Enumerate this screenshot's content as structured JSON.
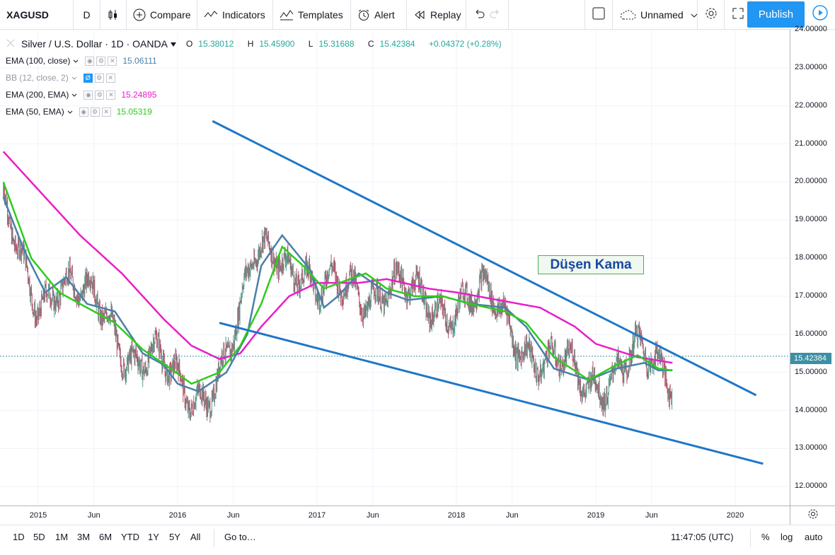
{
  "toolbar": {
    "symbol": "XAGUSD",
    "interval": "D",
    "compare": "Compare",
    "indicators": "Indicators",
    "templates": "Templates",
    "alert": "Alert",
    "replay": "Replay",
    "layout_name": "Unnamed",
    "publish": "Publish"
  },
  "legend": {
    "title": "Silver / U.S. Dollar · 1D · OANDA",
    "ohlc": {
      "o_label": "O",
      "o": "15.38012",
      "h_label": "H",
      "h": "15.45900",
      "l_label": "L",
      "l": "15.31688",
      "c_label": "C",
      "c": "15.42384",
      "change": "+0.04372 (+0.28%)"
    },
    "indicators": [
      {
        "name": "EMA (100, close)",
        "value": "15.06111",
        "color": "#4a7fa8"
      },
      {
        "name": "BB (12, close, 2)",
        "value": "",
        "color": "#9598a1"
      },
      {
        "name": "EMA (200, EMA)",
        "value": "15.24895",
        "color": "#e91ec8"
      },
      {
        "name": "EMA (50, EMA)",
        "value": "15.05319",
        "color": "#2ecc1a"
      }
    ]
  },
  "price_scale": {
    "ticks": [
      "24.00000",
      "23.00000",
      "22.00000",
      "21.00000",
      "20.00000",
      "19.00000",
      "18.00000",
      "17.00000",
      "16.00000",
      "15.00000",
      "14.00000",
      "13.00000",
      "12.00000"
    ],
    "last_price": "15.42384"
  },
  "time_scale": {
    "ticks": [
      "2015",
      "Jun",
      "2016",
      "Jun",
      "2017",
      "Jun",
      "2018",
      "Jun",
      "2019",
      "Jun",
      "2020"
    ]
  },
  "annotation": "Düşen Kama",
  "bottom": {
    "ranges": [
      "1D",
      "5D",
      "1M",
      "3M",
      "6M",
      "YTD",
      "1Y",
      "5Y",
      "All"
    ],
    "goto": "Go to…",
    "time": "11:47:05 (UTC)",
    "percent": "%",
    "log": "log",
    "auto": "auto"
  },
  "chart_data": {
    "type": "line",
    "title": "Silver / U.S. Dollar · 1D · OANDA",
    "ylim": [
      11.8,
      24.0
    ],
    "x_range": [
      "2014-10",
      "2020-05"
    ],
    "series": [
      {
        "name": "EMA (200, EMA)",
        "color": "#e91ec8",
        "points": [
          [
            2014.75,
            20.8
          ],
          [
            2015.0,
            19.8
          ],
          [
            2015.3,
            18.6
          ],
          [
            2015.6,
            17.6
          ],
          [
            2015.9,
            16.4
          ],
          [
            2016.1,
            15.7
          ],
          [
            2016.3,
            15.35
          ],
          [
            2016.45,
            15.5
          ],
          [
            2016.6,
            16.2
          ],
          [
            2016.8,
            17.0
          ],
          [
            2017.0,
            17.35
          ],
          [
            2017.3,
            17.35
          ],
          [
            2017.5,
            17.45
          ],
          [
            2017.8,
            17.2
          ],
          [
            2018.0,
            17.1
          ],
          [
            2018.3,
            16.9
          ],
          [
            2018.6,
            16.7
          ],
          [
            2018.85,
            16.2
          ],
          [
            2019.0,
            15.75
          ],
          [
            2019.3,
            15.4
          ],
          [
            2019.55,
            15.25
          ]
        ]
      },
      {
        "name": "EMA (100, close)",
        "color": "#4a7fa8",
        "points": [
          [
            2014.75,
            19.6
          ],
          [
            2014.9,
            18.2
          ],
          [
            2015.05,
            17.1
          ],
          [
            2015.2,
            17.5
          ],
          [
            2015.35,
            16.8
          ],
          [
            2015.55,
            16.6
          ],
          [
            2015.75,
            15.5
          ],
          [
            2015.9,
            15.2
          ],
          [
            2016.0,
            14.7
          ],
          [
            2016.15,
            14.5
          ],
          [
            2016.35,
            15.0
          ],
          [
            2016.5,
            16.0
          ],
          [
            2016.6,
            17.8
          ],
          [
            2016.75,
            18.6
          ],
          [
            2016.95,
            17.7
          ],
          [
            2017.05,
            16.7
          ],
          [
            2017.15,
            17.0
          ],
          [
            2017.3,
            17.6
          ],
          [
            2017.5,
            17.1
          ],
          [
            2017.65,
            16.9
          ],
          [
            2017.9,
            17.0
          ],
          [
            2018.1,
            16.8
          ],
          [
            2018.35,
            16.7
          ],
          [
            2018.5,
            16.2
          ],
          [
            2018.7,
            15.1
          ],
          [
            2018.95,
            14.8
          ],
          [
            2019.15,
            15.1
          ],
          [
            2019.35,
            15.25
          ],
          [
            2019.45,
            15.05
          ],
          [
            2019.55,
            15.06
          ]
        ]
      },
      {
        "name": "EMA (50, EMA)",
        "color": "#2ecc1a",
        "points": [
          [
            2014.75,
            20.0
          ],
          [
            2014.95,
            18.0
          ],
          [
            2015.15,
            17.1
          ],
          [
            2015.35,
            16.7
          ],
          [
            2015.55,
            16.3
          ],
          [
            2015.75,
            15.6
          ],
          [
            2015.95,
            15.1
          ],
          [
            2016.1,
            14.7
          ],
          [
            2016.3,
            15.0
          ],
          [
            2016.45,
            15.7
          ],
          [
            2016.6,
            16.8
          ],
          [
            2016.75,
            18.3
          ],
          [
            2016.9,
            17.8
          ],
          [
            2017.05,
            17.2
          ],
          [
            2017.2,
            17.4
          ],
          [
            2017.35,
            17.6
          ],
          [
            2017.5,
            17.2
          ],
          [
            2017.7,
            17.0
          ],
          [
            2017.9,
            17.0
          ],
          [
            2018.1,
            16.8
          ],
          [
            2018.35,
            16.6
          ],
          [
            2018.5,
            16.3
          ],
          [
            2018.7,
            15.4
          ],
          [
            2018.95,
            14.8
          ],
          [
            2019.15,
            15.2
          ],
          [
            2019.3,
            15.45
          ],
          [
            2019.45,
            15.1
          ],
          [
            2019.55,
            15.05
          ]
        ]
      }
    ],
    "trendlines": [
      {
        "name": "upper",
        "color": "#1e77c7",
        "points": [
          [
            2016.25,
            21.6
          ],
          [
            2020.15,
            14.4
          ]
        ]
      },
      {
        "name": "lower",
        "color": "#1e77c7",
        "points": [
          [
            2016.3,
            16.3
          ],
          [
            2020.2,
            12.6
          ]
        ]
      }
    ],
    "last_price": 15.42384
  }
}
